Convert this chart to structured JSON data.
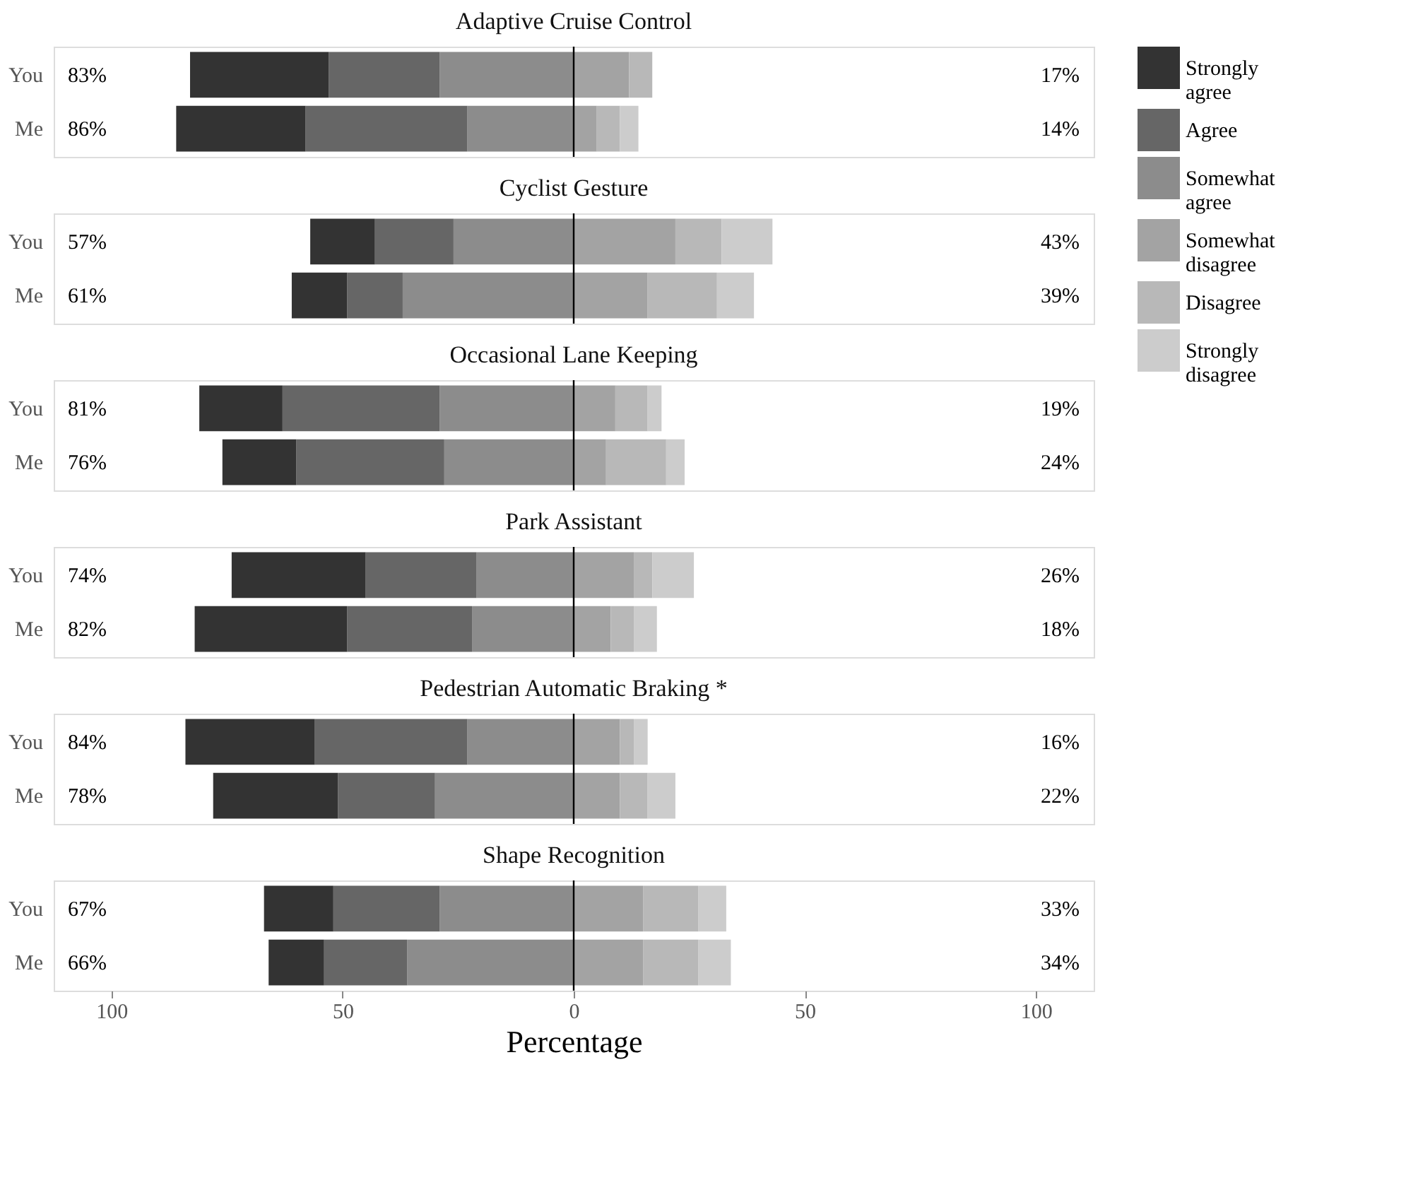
{
  "chart_data": [
    {
      "type": "bar",
      "orientation": "horizontal",
      "stacked": true,
      "title": "Adaptive Cruise Control",
      "categories": [
        "You",
        "Me"
      ],
      "xlim": [
        -112.5,
        112.5
      ],
      "tick_labels": "y",
      "grid": false,
      "legend": "right",
      "ref_lines": [
        {
          "axis": "x",
          "value": 0,
          "color": "#000000"
        }
      ],
      "series": [
        {
          "name": "Somewhat agree",
          "color": "#8c8c8c",
          "values": [
            -29,
            -23
          ]
        },
        {
          "name": "Agree",
          "color": "#666666",
          "values": [
            -24,
            -35
          ]
        },
        {
          "name": "Strongly agree",
          "color": "#333333",
          "values": [
            -30,
            -28
          ]
        },
        {
          "name": "Somewhat disagree",
          "color": "#a3a3a3",
          "values": [
            12,
            5
          ]
        },
        {
          "name": "Disagree",
          "color": "#b8b8b8",
          "values": [
            5,
            5
          ]
        },
        {
          "name": "Strongly disagree",
          "color": "#cccccc",
          "values": [
            0,
            4
          ]
        }
      ],
      "annotations": [
        "83%",
        "86%",
        "17%",
        "14%"
      ]
    },
    {
      "type": "bar",
      "orientation": "horizontal",
      "stacked": true,
      "title": "Cyclist Gesture",
      "categories": [
        "You",
        "Me"
      ],
      "xlim": [
        -112.5,
        112.5
      ],
      "tick_labels": "y",
      "grid": false,
      "legend": "right",
      "ref_lines": [
        {
          "axis": "x",
          "value": 0,
          "color": "#000000"
        }
      ],
      "series": [
        {
          "name": "Somewhat agree",
          "color": "#8c8c8c",
          "values": [
            -26,
            -37
          ]
        },
        {
          "name": "Agree",
          "color": "#666666",
          "values": [
            -17,
            -12
          ]
        },
        {
          "name": "Strongly agree",
          "color": "#333333",
          "values": [
            -14,
            -12
          ]
        },
        {
          "name": "Somewhat disagree",
          "color": "#a3a3a3",
          "values": [
            22,
            16
          ]
        },
        {
          "name": "Disagree",
          "color": "#b8b8b8",
          "values": [
            10,
            15
          ]
        },
        {
          "name": "Strongly disagree",
          "color": "#cccccc",
          "values": [
            11,
            8
          ]
        }
      ],
      "annotations": [
        "57%",
        "61%",
        "43%",
        "39%"
      ]
    },
    {
      "type": "bar",
      "orientation": "horizontal",
      "stacked": true,
      "title": "Occasional Lane Keeping",
      "categories": [
        "You",
        "Me"
      ],
      "xlim": [
        -112.5,
        112.5
      ],
      "tick_labels": "y",
      "grid": false,
      "legend": "right",
      "ref_lines": [
        {
          "axis": "x",
          "value": 0,
          "color": "#000000"
        }
      ],
      "series": [
        {
          "name": "Somewhat agree",
          "color": "#8c8c8c",
          "values": [
            -29,
            -28
          ]
        },
        {
          "name": "Agree",
          "color": "#666666",
          "values": [
            -34,
            -32
          ]
        },
        {
          "name": "Strongly agree",
          "color": "#333333",
          "values": [
            -18,
            -16
          ]
        },
        {
          "name": "Somewhat disagree",
          "color": "#a3a3a3",
          "values": [
            9,
            7
          ]
        },
        {
          "name": "Disagree",
          "color": "#b8b8b8",
          "values": [
            7,
            13
          ]
        },
        {
          "name": "Strongly disagree",
          "color": "#cccccc",
          "values": [
            3,
            4
          ]
        }
      ],
      "annotations": [
        "81%",
        "76%",
        "19%",
        "24%"
      ]
    },
    {
      "type": "bar",
      "orientation": "horizontal",
      "stacked": true,
      "title": "Park Assistant",
      "categories": [
        "You",
        "Me"
      ],
      "xlim": [
        -112.5,
        112.5
      ],
      "tick_labels": "y",
      "grid": false,
      "legend": "right",
      "ref_lines": [
        {
          "axis": "x",
          "value": 0,
          "color": "#000000"
        }
      ],
      "series": [
        {
          "name": "Somewhat agree",
          "color": "#8c8c8c",
          "values": [
            -21,
            -22
          ]
        },
        {
          "name": "Agree",
          "color": "#666666",
          "values": [
            -24,
            -27
          ]
        },
        {
          "name": "Strongly agree",
          "color": "#333333",
          "values": [
            -29,
            -33
          ]
        },
        {
          "name": "Somewhat disagree",
          "color": "#a3a3a3",
          "values": [
            13,
            8
          ]
        },
        {
          "name": "Disagree",
          "color": "#b8b8b8",
          "values": [
            4,
            5
          ]
        },
        {
          "name": "Strongly disagree",
          "color": "#cccccc",
          "values": [
            9,
            5
          ]
        }
      ],
      "annotations": [
        "74%",
        "82%",
        "26%",
        "18%"
      ]
    },
    {
      "type": "bar",
      "orientation": "horizontal",
      "stacked": true,
      "title": "Pedestrian Automatic Braking *",
      "categories": [
        "You",
        "Me"
      ],
      "xlim": [
        -112.5,
        112.5
      ],
      "tick_labels": "y",
      "grid": false,
      "legend": "right",
      "ref_lines": [
        {
          "axis": "x",
          "value": 0,
          "color": "#000000"
        }
      ],
      "series": [
        {
          "name": "Somewhat agree",
          "color": "#8c8c8c",
          "values": [
            -23,
            -30
          ]
        },
        {
          "name": "Agree",
          "color": "#666666",
          "values": [
            -33,
            -21
          ]
        },
        {
          "name": "Strongly agree",
          "color": "#333333",
          "values": [
            -28,
            -27
          ]
        },
        {
          "name": "Somewhat disagree",
          "color": "#a3a3a3",
          "values": [
            10,
            10
          ]
        },
        {
          "name": "Disagree",
          "color": "#b8b8b8",
          "values": [
            3,
            6
          ]
        },
        {
          "name": "Strongly disagree",
          "color": "#cccccc",
          "values": [
            3,
            6
          ]
        }
      ],
      "annotations": [
        "84%",
        "78%",
        "16%",
        "22%"
      ]
    },
    {
      "type": "bar",
      "orientation": "horizontal",
      "stacked": true,
      "title": "Shape Recognition",
      "xlabel": "Percentage",
      "categories": [
        "You",
        "Me"
      ],
      "xlim": [
        -112.5,
        112.5
      ],
      "xticks": [
        {
          "value": -100,
          "label": "100"
        },
        {
          "value": -50,
          "label": "50"
        },
        0,
        50,
        100
      ],
      "grid": false,
      "legend": "right",
      "ref_lines": [
        {
          "axis": "x",
          "value": 0,
          "color": "#000000"
        }
      ],
      "series": [
        {
          "name": "Somewhat agree",
          "color": "#8c8c8c",
          "values": [
            -29,
            -36
          ]
        },
        {
          "name": "Agree",
          "color": "#666666",
          "values": [
            -23,
            -18
          ]
        },
        {
          "name": "Strongly agree",
          "color": "#333333",
          "values": [
            -15,
            -12
          ]
        },
        {
          "name": "Somewhat disagree",
          "color": "#a3a3a3",
          "values": [
            15,
            15
          ]
        },
        {
          "name": "Disagree",
          "color": "#b8b8b8",
          "values": [
            12,
            12
          ]
        },
        {
          "name": "Strongly disagree",
          "color": "#cccccc",
          "values": [
            6,
            7
          ]
        }
      ],
      "annotations": [
        "67%",
        "66%",
        "33%",
        "34%"
      ]
    }
  ]
}
